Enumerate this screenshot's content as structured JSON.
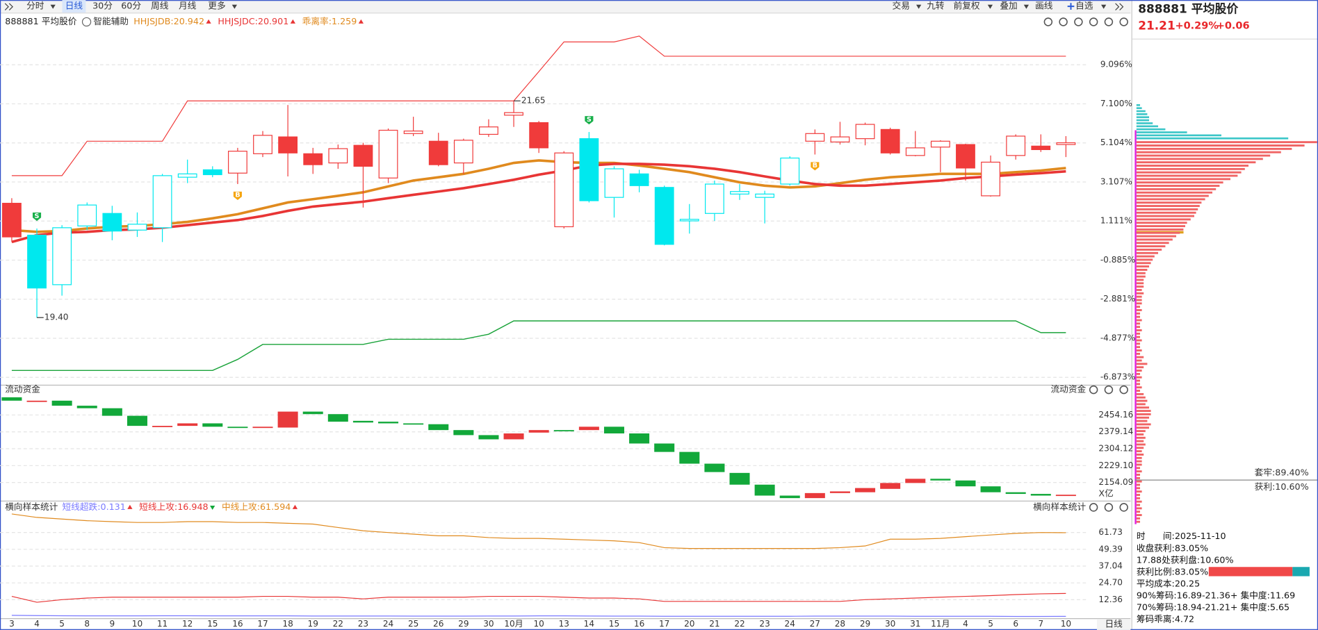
{
  "toolbar": {
    "left": [
      "分时",
      "日线",
      "30分",
      "60分",
      "周线",
      "月线",
      "更多"
    ],
    "right": [
      "交易",
      "九转",
      "前复权",
      "叠加",
      "画线",
      "自选"
    ]
  },
  "header": {
    "symbol": "888881 平均股价",
    "assist": "智能辅助",
    "indicators": [
      {
        "text": "HHJSJDB:20.942",
        "color": "#e08a1e",
        "trend": "up"
      },
      {
        "text": "HHJSJDC:20.901",
        "color": "#e83535",
        "trend": "up"
      },
      {
        "text": "乖离率:1.259",
        "color": "#e08a1e",
        "trend": "up"
      }
    ]
  },
  "chart_data": [
    {
      "type": "candlestick",
      "categories": [
        "3",
        "4",
        "5",
        "8",
        "9",
        "10",
        "11",
        "12",
        "15",
        "16",
        "17",
        "18",
        "19",
        "22",
        "23",
        "24",
        "25",
        "26",
        "29",
        "30",
        "10月",
        "10",
        "13",
        "14",
        "15",
        "16",
        "17",
        "20",
        "21",
        "22",
        "23",
        "24",
        "27",
        "28",
        "29",
        "30",
        "31",
        "11月",
        "4",
        "5",
        "6",
        "7",
        "10"
      ],
      "ylim": [
        -7.25,
        10.9
      ],
      "yticks": [
        {
          "value": 9.096,
          "label": "9.096%"
        },
        {
          "value": 7.1,
          "label": "7.100%"
        },
        {
          "value": 5.104,
          "label": "5.104%"
        },
        {
          "value": 3.107,
          "label": "3.107%"
        },
        {
          "value": 1.111,
          "label": "1.111%"
        },
        {
          "value": -0.885,
          "label": "-0.885%"
        },
        {
          "value": -2.881,
          "label": "-2.881%"
        },
        {
          "value": -4.877,
          "label": "-4.877%"
        },
        {
          "value": -6.873,
          "label": "-6.873%"
        }
      ],
      "grid": true,
      "palette": {
        "r": "#f03b3b",
        "c": "#00e8ee"
      },
      "open": [
        2.02,
        0.39,
        -2.14,
        0.86,
        1.5,
        0.65,
        0.77,
        3.35,
        3.73,
        3.56,
        4.55,
        5.41,
        4.55,
        4.08,
        4.98,
        3.31,
        5.58,
        5.19,
        4.08,
        5.54,
        6.52,
        6.14,
        0.82,
        5.32,
        2.32,
        3.52,
        2.83,
        1.12,
        1.5,
        2.49,
        2.32,
        3.0,
        5.19,
        5.15,
        5.32,
        5.79,
        4.46,
        4.89,
        5.02,
        2.4,
        4.46,
        4.94,
        5.02
      ],
      "high": [
        2.28,
        0.73,
        0.9,
        2.06,
        1.89,
        1.55,
        3.52,
        4.25,
        3.91,
        4.85,
        5.71,
        7.04,
        4.85,
        5.02,
        5.11,
        5.84,
        6.44,
        5.62,
        5.32,
        6.31,
        7.25,
        6.22,
        4.68,
        5.66,
        3.91,
        3.73,
        2.92,
        1.98,
        3.18,
        3.0,
        2.66,
        4.42,
        5.79,
        6.18,
        6.14,
        5.88,
        5.71,
        5.24,
        5.06,
        4.46,
        5.54,
        5.54,
        5.45
      ],
      "low": [
        0.04,
        -3.82,
        -2.7,
        0.65,
        0.13,
        0.3,
        0.04,
        3.05,
        3.35,
        3.0,
        4.38,
        3.39,
        3.52,
        3.78,
        1.8,
        3.05,
        5.45,
        3.91,
        3.52,
        5.41,
        5.92,
        4.59,
        0.73,
        2.06,
        1.29,
        2.58,
        -0.13,
        0.47,
        1.12,
        2.19,
        0.99,
        2.92,
        4.51,
        5.02,
        4.98,
        4.51,
        4.42,
        3.61,
        3.18,
        2.36,
        4.25,
        4.64,
        4.38
      ],
      "close": [
        0.3,
        -2.31,
        0.77,
        1.93,
        0.6,
        0.95,
        3.43,
        3.52,
        3.48,
        4.68,
        5.49,
        4.59,
        3.99,
        4.81,
        3.91,
        5.75,
        5.71,
        3.99,
        5.24,
        5.92,
        6.65,
        4.85,
        4.59,
        2.15,
        3.78,
        2.92,
        -0.08,
        1.2,
        3.0,
        2.62,
        2.49,
        4.33,
        5.58,
        5.41,
        6.05,
        4.59,
        4.85,
        5.19,
        3.82,
        4.12,
        5.45,
        4.76,
        5.11
      ],
      "colors": [
        "r",
        "c",
        "c",
        "c",
        "c",
        "c",
        "c",
        "c",
        "c",
        "r",
        "r",
        "r",
        "r",
        "r",
        "r",
        "r",
        "r",
        "r",
        "r",
        "r",
        "r",
        "r",
        "r",
        "c",
        "c",
        "c",
        "c",
        "c",
        "c",
        "c",
        "c",
        "c",
        "r",
        "r",
        "r",
        "r",
        "r",
        "r",
        "r",
        "r",
        "r",
        "r",
        "r"
      ],
      "lines": [
        {
          "color": "#f03b3b",
          "width": 1,
          "values": [
            3.43,
            3.43,
            3.43,
            5.19,
            5.19,
            5.19,
            5.19,
            7.25,
            7.25,
            7.25,
            7.25,
            7.25,
            7.25,
            7.25,
            7.25,
            7.25,
            7.25,
            7.25,
            7.25,
            7.25,
            7.25,
            8.75,
            10.26,
            10.26,
            10.26,
            10.56,
            9.53,
            9.53,
            9.53,
            9.53,
            9.53,
            9.53,
            9.53,
            9.53,
            9.53,
            9.53,
            9.53,
            9.53,
            9.53,
            9.53,
            9.53,
            9.53,
            9.53
          ]
        },
        {
          "color": "#1aa33a",
          "width": 1.2,
          "values": [
            -6.52,
            -6.52,
            -6.52,
            -6.52,
            -6.52,
            -6.52,
            -6.52,
            -6.52,
            -6.52,
            -5.96,
            -5.19,
            -5.19,
            -5.19,
            -5.19,
            -5.19,
            -4.93,
            -4.93,
            -4.93,
            -4.93,
            -4.67,
            -3.99,
            -3.99,
            -3.99,
            -3.99,
            -3.99,
            -3.99,
            -3.99,
            -3.99,
            -3.99,
            -3.99,
            -3.99,
            -3.99,
            -3.99,
            -3.99,
            -3.99,
            -3.99,
            -3.99,
            -3.99,
            -3.99,
            -3.99,
            -3.99,
            -4.59,
            -4.59
          ]
        },
        {
          "color": "#e08a1e",
          "width": 3,
          "values": [
            0.65,
            0.56,
            0.6,
            0.73,
            0.82,
            0.86,
            0.95,
            1.07,
            1.25,
            1.46,
            1.76,
            2.06,
            2.23,
            2.4,
            2.58,
            2.88,
            3.18,
            3.35,
            3.52,
            3.78,
            4.08,
            4.21,
            4.12,
            4.08,
            4.08,
            3.95,
            3.78,
            3.61,
            3.35,
            3.09,
            2.92,
            2.83,
            2.88,
            3.05,
            3.22,
            3.35,
            3.43,
            3.52,
            3.52,
            3.52,
            3.61,
            3.69,
            3.82
          ]
        },
        {
          "color": "#e83535",
          "width": 3,
          "values": [
            0.04,
            0.39,
            0.52,
            0.56,
            0.65,
            0.69,
            0.77,
            0.9,
            1.03,
            1.16,
            1.37,
            1.63,
            1.85,
            1.98,
            2.1,
            2.28,
            2.45,
            2.62,
            2.79,
            3.0,
            3.22,
            3.48,
            3.69,
            3.95,
            4.03,
            4.03,
            3.99,
            3.91,
            3.78,
            3.61,
            3.39,
            3.18,
            3.0,
            2.92,
            2.92,
            3.0,
            3.09,
            3.18,
            3.31,
            3.39,
            3.48,
            3.56,
            3.65
          ]
        }
      ],
      "signals": [
        null,
        "S",
        null,
        null,
        null,
        null,
        null,
        null,
        null,
        "B",
        null,
        null,
        null,
        null,
        null,
        null,
        null,
        null,
        null,
        null,
        null,
        null,
        null,
        "S",
        null,
        null,
        null,
        null,
        null,
        null,
        null,
        null,
        "B",
        null,
        null,
        null,
        null,
        null,
        null,
        null,
        null,
        null,
        null
      ],
      "signal_colors": {
        "S": "#18b04a",
        "B": "#f5a50f"
      },
      "high_labels": [
        null,
        null,
        null,
        null,
        null,
        null,
        null,
        null,
        null,
        null,
        null,
        null,
        null,
        null,
        null,
        null,
        null,
        null,
        null,
        null,
        "21.65",
        null,
        null,
        null,
        null,
        null,
        null,
        null,
        null,
        null,
        null,
        null,
        null,
        null,
        null,
        null,
        null,
        null,
        null,
        null,
        null,
        null,
        null
      ],
      "low_labels": [
        null,
        "19.40",
        null,
        null,
        null,
        null,
        null,
        null,
        null,
        null,
        null,
        null,
        null,
        null,
        null,
        null,
        null,
        null,
        null,
        null,
        null,
        null,
        null,
        null,
        null,
        null,
        null,
        null,
        null,
        null,
        null,
        null,
        null,
        null,
        null,
        null,
        null,
        null,
        null,
        null,
        null,
        null,
        null
      ],
      "x_period": "日线"
    },
    {
      "type": "floating-bar",
      "title": "流动资金",
      "unit_label": "X亿",
      "ylim": [
        2077.2,
        2562.5
      ],
      "yticks": [
        2454.16,
        2379.14,
        2304.12,
        {
          "value": 2229.1,
          "label": "2229.10"
        },
        2154.09
      ],
      "colors": {
        "up": "#e8393b",
        "down": "#12a83a"
      },
      "open": [
        2532.6,
        2514.0,
        2517.7,
        2495.3,
        2484.1,
        2450.5,
        2401.9,
        2405.7,
        2416.9,
        2401.9,
        2398.2,
        2398.2,
        2469.1,
        2457.9,
        2428.1,
        2424.3,
        2416.9,
        2413.1,
        2387.0,
        2364.6,
        2345.9,
        2375.8,
        2387.0,
        2387.0,
        2401.9,
        2372.1,
        2327.3,
        2289.9,
        2237.7,
        2196.6,
        2144.4,
        2095.8,
        2084.6,
        2107.0,
        2110.7,
        2125.7,
        2151.8,
        2170.5,
        2163.0,
        2136.9,
        2110.7,
        2103.3,
        2095.8
      ],
      "close": [
        2517.7,
        2517.7,
        2495.3,
        2484.1,
        2450.5,
        2405.7,
        2405.7,
        2416.9,
        2401.9,
        2398.2,
        2401.9,
        2469.1,
        2457.9,
        2424.3,
        2420.6,
        2416.9,
        2413.1,
        2387.0,
        2364.6,
        2345.9,
        2372.1,
        2387.0,
        2383.3,
        2401.9,
        2372.1,
        2327.3,
        2289.9,
        2237.7,
        2200.4,
        2144.4,
        2095.8,
        2084.6,
        2107.0,
        2114.5,
        2129.4,
        2151.8,
        2170.5,
        2163.0,
        2136.9,
        2110.7,
        2103.3,
        2095.8,
        2099.6
      ]
    },
    {
      "type": "line",
      "title": "横向样本统计",
      "ylim": [
        -0.6,
        76.5
      ],
      "yticks": [
        61.73,
        49.39,
        37.04,
        {
          "value": 24.7,
          "label": "24.70"
        },
        12.36
      ],
      "series": [
        {
          "name": "短线超跌:0.131",
          "color": "#7a7aff",
          "trend": "up",
          "values": [
            0.9,
            0.7,
            0.6,
            0.5,
            0.5,
            0.5,
            0.6,
            0.6,
            0.5,
            0.5,
            0.5,
            0.5,
            0.4,
            0.4,
            0.4,
            0.4,
            0.3,
            0.3,
            0.3,
            0.4,
            0.4,
            0.5,
            0.5,
            0.4,
            0.3,
            0.3,
            0.2,
            0.2,
            0.2,
            0.2,
            0.2,
            0.2,
            0.3,
            0.3,
            0.3,
            0.3,
            0.2,
            0.2,
            0.2,
            0.2,
            0.1,
            0.1,
            0.131
          ]
        },
        {
          "name": "短线上攻:16.948",
          "color": "#e83535",
          "trend": "down",
          "values": [
            14.8,
            10.5,
            12.4,
            13.6,
            14.2,
            14.2,
            14.2,
            14.2,
            14.2,
            14.2,
            14.8,
            14.8,
            14.2,
            14.2,
            13.0,
            14.2,
            14.2,
            14.2,
            14.2,
            14.8,
            14.8,
            14.8,
            14.2,
            13.6,
            13.6,
            13.0,
            11.1,
            11.1,
            11.1,
            11.1,
            11.1,
            11.1,
            11.1,
            11.1,
            12.4,
            13.0,
            13.6,
            14.2,
            14.8,
            15.4,
            16.1,
            16.7,
            16.948
          ]
        },
        {
          "name": "中线上攻:61.594",
          "color": "#e08a1e",
          "trend": "up",
          "values": [
            75.3,
            72.8,
            71.6,
            70.4,
            69.7,
            69.1,
            69.1,
            69.7,
            69.7,
            69.1,
            69.1,
            68.5,
            67.9,
            65.4,
            63.0,
            61.7,
            60.5,
            59.3,
            59.3,
            58.0,
            57.4,
            57.4,
            56.8,
            56.2,
            55.6,
            54.3,
            50.6,
            50.0,
            50.0,
            50.0,
            50.0,
            50.0,
            50.0,
            50.6,
            51.8,
            56.8,
            56.8,
            57.4,
            58.7,
            59.9,
            61.1,
            61.7,
            61.594
          ]
        }
      ]
    }
  ],
  "quote": {
    "title": "888881 平均股价",
    "price": "21.21",
    "change_pct": "+0.29%",
    "change": "+0.06"
  },
  "chips": {
    "trapped_label": "套牢:89.40%",
    "profit_label": "获利:10.60%",
    "trapped": [
      2,
      3,
      5,
      6,
      7,
      7,
      9,
      12,
      16,
      28,
      47,
      84
    ],
    "profit": [
      100,
      93,
      86,
      80,
      74,
      70,
      66,
      62,
      60,
      58,
      56,
      52,
      48,
      46,
      44,
      42,
      40,
      38,
      36,
      35,
      34,
      33,
      32,
      30,
      28,
      27,
      26,
      24,
      22,
      20,
      18,
      16,
      14,
      12,
      10,
      9,
      8,
      7,
      6,
      5,
      5,
      4,
      4,
      4,
      3,
      4,
      3,
      3,
      3,
      2,
      3,
      2,
      2,
      3,
      2,
      2,
      3,
      2,
      2,
      3,
      2,
      2,
      3,
      2,
      4,
      3,
      6,
      4,
      3,
      2,
      3,
      2,
      2,
      3,
      2,
      4,
      5,
      6,
      5,
      7,
      8,
      8,
      7,
      6,
      8,
      7,
      5,
      4,
      5,
      4,
      5,
      4,
      3,
      4,
      3,
      3,
      3,
      2,
      3,
      2,
      2,
      3,
      2,
      2,
      3,
      2,
      2,
      3,
      2,
      3,
      2,
      3,
      2,
      2
    ]
  },
  "stats": [
    "时　　间:2025-11-10",
    "收盘获利:83.05%",
    "17.88处获利盘:10.60%",
    "获利比例:83.05%",
    "平均成本:20.25",
    "90%筹码:16.89-21.36+ 集中度:11.69",
    "70%筹码:18.94-21.21+ 集中度:5.65",
    "筹码乖离:4.72"
  ],
  "profit_ratio": 83.05
}
